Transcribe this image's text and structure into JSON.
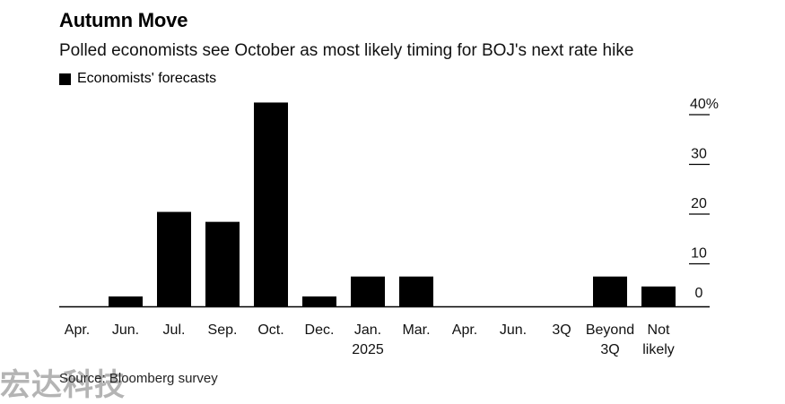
{
  "chart_data": {
    "type": "bar",
    "title": "Autumn Move",
    "subtitle": "Polled economists see October as most likely timing for BOJ's next rate hike",
    "categories": [
      [
        "Apr."
      ],
      [
        "Jun."
      ],
      [
        "Jul."
      ],
      [
        "Sep."
      ],
      [
        "Oct."
      ],
      [
        "Dec."
      ],
      [
        "Jan.",
        "2025"
      ],
      [
        "Mar."
      ],
      [
        "Apr."
      ],
      [
        "Jun."
      ],
      [
        "3Q"
      ],
      [
        "Beyond",
        "3Q"
      ],
      [
        "Not",
        "likely"
      ]
    ],
    "series": [
      {
        "name": "Economists' forecasts",
        "values": [
          0,
          2,
          19,
          17,
          41,
          2,
          6,
          6,
          0,
          0,
          0,
          6,
          4
        ]
      }
    ],
    "ylim": [
      0,
      40
    ],
    "yticks": [
      "0",
      "10",
      "20",
      "30",
      "40"
    ],
    "yunit": "%",
    "grid": false,
    "legend": "top-left",
    "color": "#000000",
    "source": "Source: Bloomberg survey"
  },
  "watermark": "宏达科技"
}
